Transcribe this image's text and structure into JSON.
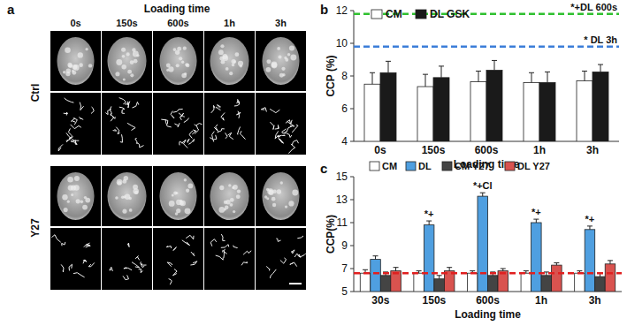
{
  "panel_a": {
    "label": "a",
    "title": "Loading time",
    "columns": [
      "0s",
      "150s",
      "600s",
      "1h",
      "3h"
    ],
    "rows": [
      "Ctrl",
      "Y27"
    ]
  },
  "chart_data": [
    {
      "type": "bar",
      "panel": "b",
      "x_label": "Loading time",
      "y_label": "CCP (%)",
      "categories": [
        "0s",
        "150s",
        "600s",
        "1h",
        "3h"
      ],
      "ylim": [
        4,
        12
      ],
      "yticks": [
        4,
        6,
        8,
        10,
        12
      ],
      "legend": "upper left",
      "series": [
        {
          "name": "CM",
          "color": "#ffffff",
          "values": [
            7.5,
            7.35,
            7.65,
            7.6,
            7.7
          ],
          "errors": [
            0.7,
            0.75,
            0.65,
            0.6,
            0.6
          ]
        },
        {
          "name": "DL GSK",
          "color": "#1a1a1a",
          "values": [
            8.2,
            7.9,
            8.35,
            7.6,
            8.25
          ],
          "errors": [
            0.7,
            0.7,
            0.6,
            0.65,
            0.45
          ]
        }
      ],
      "reference_lines": [
        {
          "value": 11.8,
          "label": "*+DL 600s",
          "color": "#2fc02f",
          "line_style": "dashed"
        },
        {
          "value": 9.8,
          "label": "* DL 3h",
          "color": "#3b7dd8",
          "line_style": "dashed"
        }
      ]
    },
    {
      "type": "bar",
      "panel": "c",
      "x_label": "Loading time",
      "y_label": "CCP(%)",
      "categories": [
        "30s",
        "150s",
        "600s",
        "1h",
        "3h"
      ],
      "ylim": [
        5,
        15
      ],
      "yticks": [
        5,
        7,
        9,
        11,
        13,
        15
      ],
      "legend": "top",
      "series": [
        {
          "name": "CM",
          "color": "#ffffff",
          "values": [
            6.6,
            6.6,
            6.6,
            6.6,
            6.6
          ],
          "errors": [
            0.3,
            0.2,
            0.2,
            0.2,
            0.2
          ]
        },
        {
          "name": "DL",
          "color": "#4f9fe0",
          "values": [
            7.8,
            10.8,
            13.3,
            11.0,
            10.4
          ],
          "errors": [
            0.3,
            0.35,
            0.3,
            0.3,
            0.3
          ],
          "annotations": [
            null,
            "*+",
            "*+Cl",
            "*+",
            "*+"
          ]
        },
        {
          "name": "CM Y27",
          "color": "#444444",
          "values": [
            6.4,
            6.1,
            6.4,
            6.4,
            6.3
          ],
          "errors": [
            0.3,
            0.3,
            0.3,
            0.3,
            0.3
          ]
        },
        {
          "name": "DL Y27",
          "color": "#d9534f",
          "values": [
            6.8,
            6.8,
            6.8,
            7.3,
            7.4
          ],
          "errors": [
            0.3,
            0.3,
            0.2,
            0.2,
            0.3
          ]
        }
      ],
      "reference_lines": [
        {
          "value": 6.6,
          "color": "#e02020",
          "line_style": "dashed"
        }
      ]
    }
  ]
}
